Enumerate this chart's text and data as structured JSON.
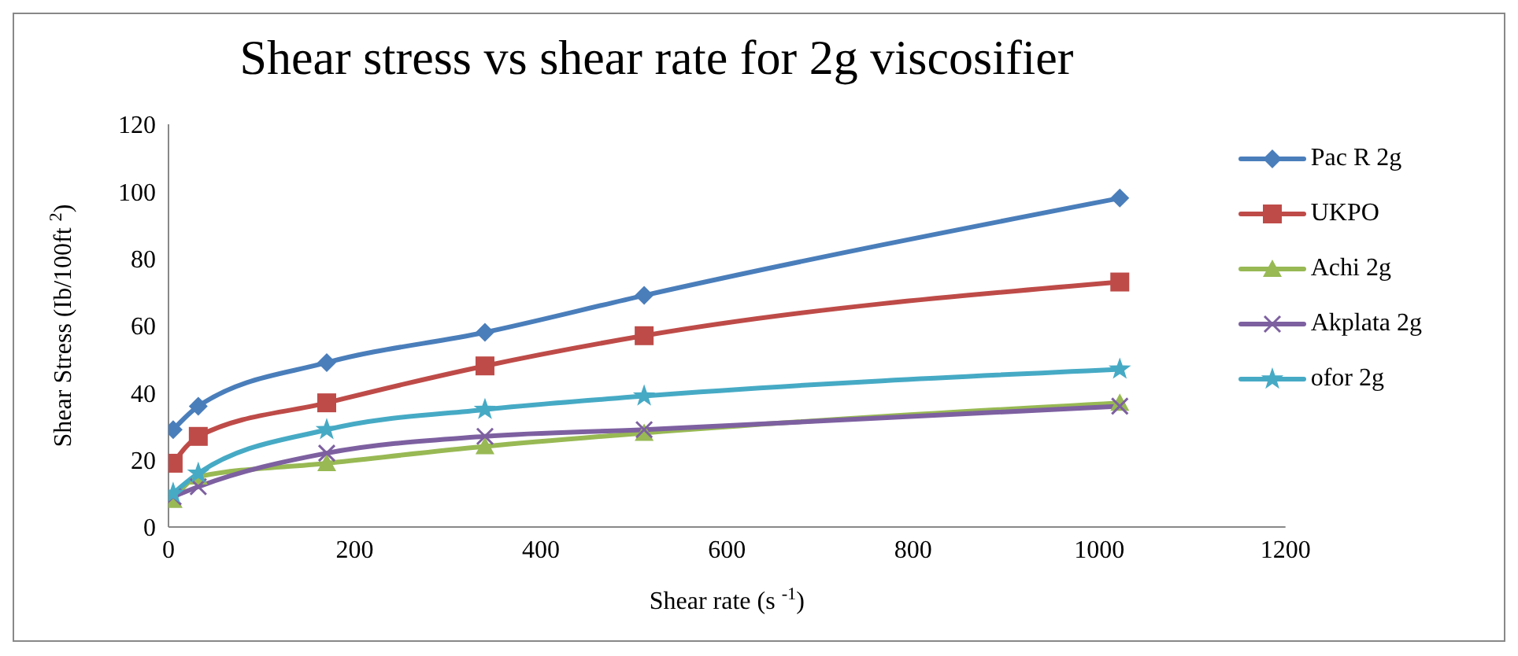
{
  "chart_data": {
    "type": "line",
    "title": "Shear stress vs shear rate for 2g viscosifier",
    "xlabel": "Shear rate (s $^{-1}$)",
    "ylabel": "Shear Stress (Ib/100ft $^{2}$)",
    "x": [
      5,
      32,
      170,
      340,
      511,
      1022
    ],
    "series": [
      {
        "name": "Pac R 2g",
        "color": "#4a7ebb",
        "marker": "diamond",
        "values": [
          29,
          36,
          49,
          58,
          69,
          98
        ]
      },
      {
        "name": "UKPO",
        "color": "#be4b48",
        "marker": "square",
        "values": [
          19,
          27,
          37,
          48,
          57,
          73
        ]
      },
      {
        "name": "Achi 2g",
        "color": "#98b954",
        "marker": "triangle",
        "values": [
          8,
          15,
          19,
          24,
          28,
          37
        ]
      },
      {
        "name": "Akplata 2g",
        "color": "#7d60a0",
        "marker": "cross",
        "values": [
          9,
          12,
          22,
          27,
          29,
          36
        ]
      },
      {
        "name": "ofor 2g",
        "color": "#46aac5",
        "marker": "star",
        "values": [
          10,
          16,
          29,
          35,
          39,
          47
        ]
      }
    ],
    "xlim": [
      0,
      1200
    ],
    "xticks": [
      0,
      200,
      400,
      600,
      800,
      1000,
      1200
    ],
    "ylim": [
      0,
      120
    ],
    "yticks": [
      0,
      20,
      40,
      60,
      80,
      100,
      120
    ],
    "grid": false,
    "legend": "right",
    "line_style": "solid"
  }
}
